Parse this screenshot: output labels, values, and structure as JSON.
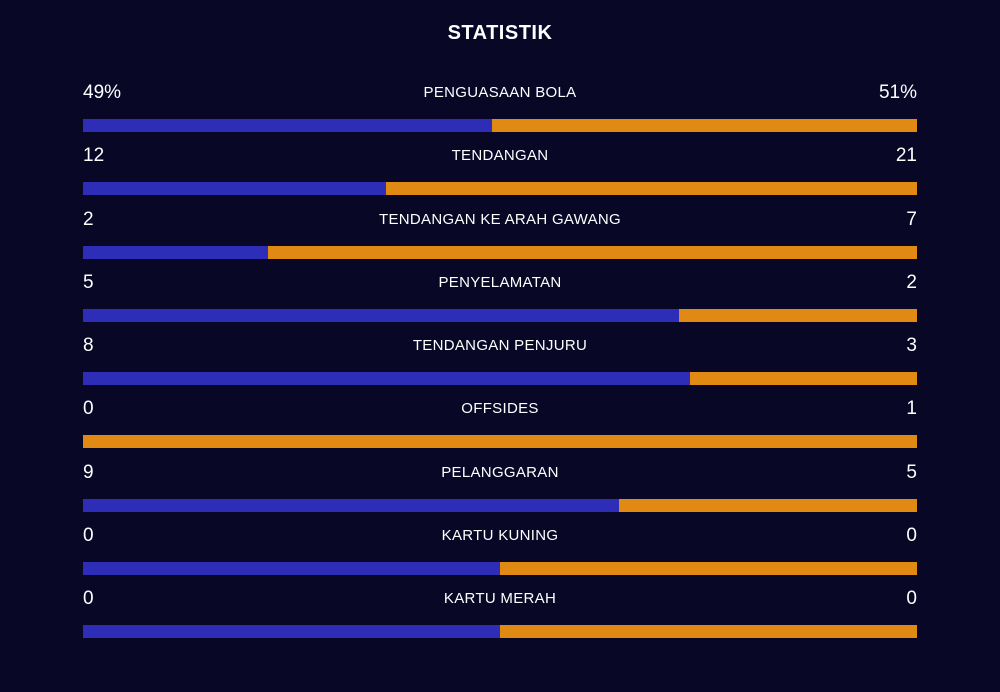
{
  "title": "STATISTIK",
  "colors": {
    "background": "#080726",
    "home": "#2E2DB8",
    "away": "#E08A14"
  },
  "stats": [
    {
      "label": "PENGUASAAN BOLA",
      "home": "49%",
      "away": "51%",
      "home_share": 0.49
    },
    {
      "label": "TENDANGAN",
      "home": "12",
      "away": "21",
      "home_share": 0.3636
    },
    {
      "label": "TENDANGAN KE ARAH GAWANG",
      "home": "2",
      "away": "7",
      "home_share": 0.2222
    },
    {
      "label": "PENYELAMATAN",
      "home": "5",
      "away": "2",
      "home_share": 0.7143
    },
    {
      "label": "TENDANGAN PENJURU",
      "home": "8",
      "away": "3",
      "home_share": 0.7273
    },
    {
      "label": "OFFSIDES",
      "home": "0",
      "away": "1",
      "home_share": 0.0
    },
    {
      "label": "PELANGGARAN",
      "home": "9",
      "away": "5",
      "home_share": 0.6429
    },
    {
      "label": "KARTU KUNING",
      "home": "0",
      "away": "0",
      "home_share": 0.5
    },
    {
      "label": "KARTU MERAH",
      "home": "0",
      "away": "0",
      "home_share": 0.5
    }
  ]
}
